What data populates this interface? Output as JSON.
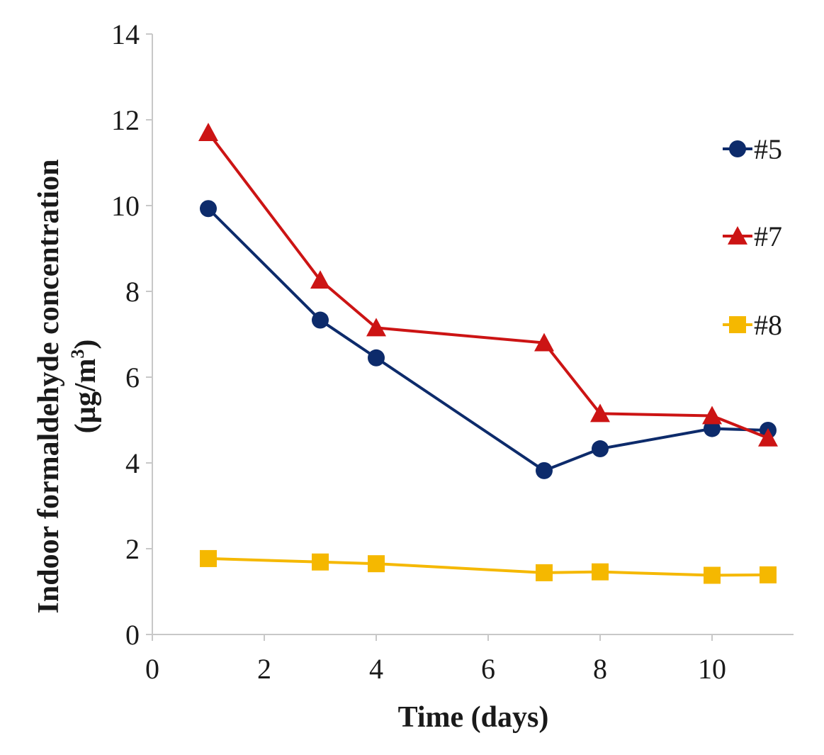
{
  "chart_data": {
    "type": "line",
    "title": "",
    "xlabel": "Time (days)",
    "ylabel_line1": "Indoor formaldehyde concentration",
    "ylabel_line2_prefix": "(µg/m",
    "ylabel_line2_sup": "3",
    "ylabel_line2_suffix": ")",
    "xlim": [
      0,
      11.5
    ],
    "ylim": [
      0,
      14
    ],
    "xticks": [
      0,
      2,
      4,
      6,
      8,
      10
    ],
    "yticks": [
      0,
      2,
      4,
      6,
      8,
      10,
      12,
      14
    ],
    "grid": false,
    "legend_position": "right",
    "x": [
      1,
      3,
      4,
      7,
      8,
      10,
      11
    ],
    "series": [
      {
        "name": "#5",
        "marker": "circle",
        "color": "#0d2b6b",
        "values": [
          9.93,
          7.33,
          6.45,
          3.82,
          4.33,
          4.8,
          4.76
        ]
      },
      {
        "name": "#7",
        "marker": "triangle",
        "color": "#cc1414",
        "values": [
          11.7,
          8.26,
          7.15,
          6.8,
          5.15,
          5.1,
          4.58
        ]
      },
      {
        "name": "#8",
        "marker": "square",
        "color": "#f5b800",
        "values": [
          1.77,
          1.69,
          1.65,
          1.44,
          1.46,
          1.38,
          1.39
        ]
      }
    ]
  }
}
